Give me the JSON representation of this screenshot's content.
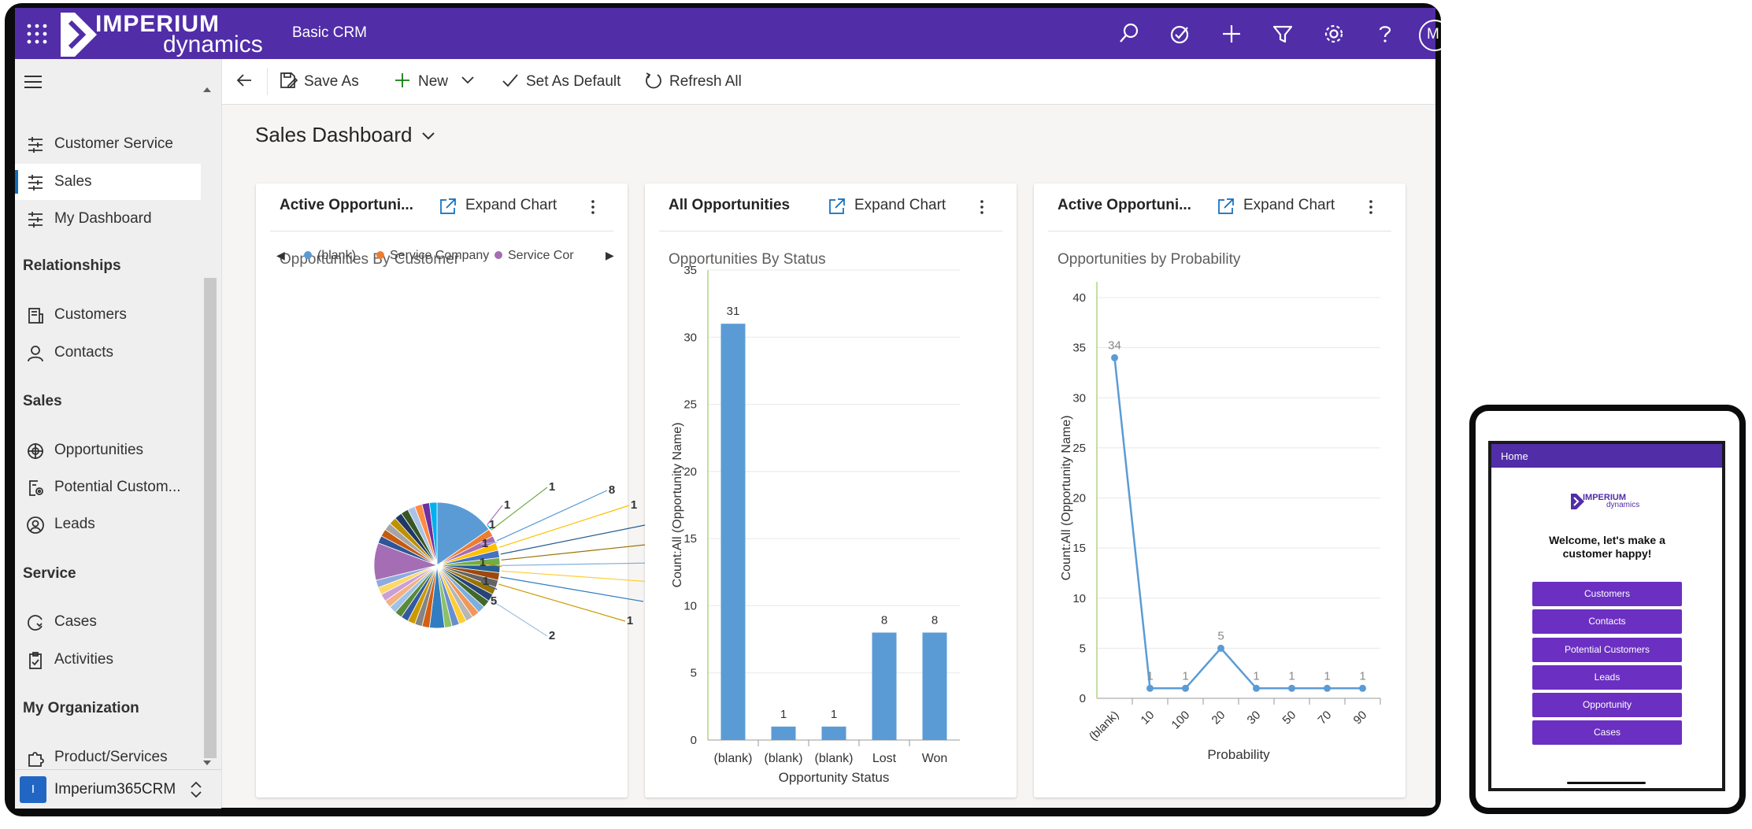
{
  "app": {
    "logo_top": "IMPERIUM",
    "logo_bottom": "dynamics",
    "app_name": "Basic CRM",
    "user_initial": "M",
    "icons": [
      "app-launcher-icon",
      "search-icon",
      "task-icon",
      "add-icon",
      "filter-icon",
      "settings-icon",
      "help-icon"
    ]
  },
  "sidebar": {
    "items_top": [
      {
        "label": "Customer Service",
        "icon": "dashboard-icon"
      },
      {
        "label": "Sales",
        "icon": "dashboard-icon",
        "selected": true
      },
      {
        "label": "My Dashboard",
        "icon": "dashboard-icon"
      }
    ],
    "groups": [
      {
        "title": "Relationships",
        "items": [
          {
            "label": "Customers",
            "icon": "account-icon"
          },
          {
            "label": "Contacts",
            "icon": "person-icon"
          }
        ]
      },
      {
        "title": "Sales",
        "items": [
          {
            "label": "Opportunities",
            "icon": "target-icon"
          },
          {
            "label": "Potential Custom...",
            "icon": "lead-gear-icon"
          },
          {
            "label": "Leads",
            "icon": "person-circle-icon"
          }
        ]
      },
      {
        "title": "Service",
        "items": [
          {
            "label": "Cases",
            "icon": "cases-icon"
          },
          {
            "label": "Activities",
            "icon": "clipboard-icon"
          }
        ]
      },
      {
        "title": "My Organization",
        "items": [
          {
            "label": "Product/Services",
            "icon": "puzzle-icon"
          }
        ]
      }
    ],
    "area": {
      "initial": "I",
      "label": "Imperium365CRM"
    }
  },
  "commandbar": {
    "save_as": "Save As",
    "new": "New",
    "set_default": "Set As Default",
    "refresh": "Refresh All"
  },
  "dashboard": {
    "title": "Sales Dashboard"
  },
  "cards": [
    {
      "title": "Active Opportuni...",
      "expand": "Expand Chart",
      "subtitle": "Opportunities By Customer"
    },
    {
      "title": "All Opportunities",
      "expand": "Expand Chart",
      "subtitle": "Opportunities By Status"
    },
    {
      "title": "Active Opportuni...",
      "expand": "Expand Chart",
      "subtitle": "Opportunities by Probability"
    }
  ],
  "chart_data": [
    {
      "type": "pie",
      "title": "Opportunities By Customer",
      "legend": [
        "(blank)",
        "Service Company",
        "Service Cor"
      ],
      "legend_placement": "top",
      "legend_colors": [
        "#5b9bd5",
        "#ed7d31",
        "#a56eb4"
      ],
      "slices": [
        8,
        1,
        1,
        1,
        1,
        1,
        1,
        1,
        1,
        1,
        1,
        1,
        1,
        1,
        1,
        1,
        1,
        1,
        2,
        1,
        1,
        1,
        1,
        1,
        1,
        1,
        1,
        1,
        1,
        5,
        1,
        1,
        1,
        1,
        1,
        1,
        1,
        1,
        1,
        1
      ],
      "printed_labels": [
        {
          "v": "8",
          "tx": 452,
          "ty": 394
        },
        {
          "v": "1",
          "tx": 480,
          "ty": 413
        },
        {
          "v": "1",
          "tx": 500,
          "ty": 438
        },
        {
          "v": "1",
          "tx": 510,
          "ty": 462
        },
        {
          "v": "1",
          "tx": 512,
          "ty": 486
        },
        {
          "v": "1",
          "tx": 508,
          "ty": 510
        },
        {
          "v": "1",
          "tx": 498,
          "ty": 535
        },
        {
          "v": "1",
          "tx": 475,
          "ty": 560
        },
        {
          "v": "2",
          "tx": 376,
          "ty": 579
        },
        {
          "v": "5",
          "tx": 302,
          "ty": 535
        },
        {
          "v": "1",
          "tx": 292,
          "ty": 510
        },
        {
          "v": "1",
          "tx": 288,
          "ty": 486
        },
        {
          "v": "1",
          "tx": 291,
          "ty": 462
        },
        {
          "v": "1",
          "tx": 300,
          "ty": 438
        },
        {
          "v": "1",
          "tx": 319,
          "ty": 413
        },
        {
          "v": "1",
          "tx": 376,
          "ty": 390
        }
      ]
    },
    {
      "type": "bar",
      "title": "Opportunities By Status",
      "categories": [
        "(blank)",
        "(blank)",
        "(blank)",
        "Lost",
        "Won"
      ],
      "values": [
        31,
        1,
        1,
        8,
        8
      ],
      "xlabel": "Opportunity Status",
      "ylabel": "Count:All (Opportunity Name)",
      "ylim": [
        0,
        35
      ],
      "yticks": [
        0,
        5,
        10,
        15,
        20,
        25,
        30,
        35
      ],
      "grid": true,
      "color": "#5b9bd5"
    },
    {
      "type": "line",
      "title": "Opportunities by Probability",
      "categories": [
        "(blank)",
        "10",
        "100",
        "20",
        "30",
        "50",
        "70",
        "90"
      ],
      "values": [
        34,
        1,
        1,
        5,
        1,
        1,
        1,
        1
      ],
      "xlabel": "Probability",
      "ylabel": "Count:All (Opportunity Name)",
      "ylim": [
        0,
        40
      ],
      "yticks": [
        0,
        5,
        10,
        15,
        20,
        25,
        30,
        35,
        40
      ],
      "grid": true,
      "color": "#5b9bd5"
    }
  ],
  "tablet": {
    "header": "Home",
    "logo_top": "IMPERIUM",
    "logo_bottom": "dynamics",
    "welcome": "Welcome, let's make a customer happy!",
    "buttons": [
      "Customers",
      "Contacts",
      "Potential Customers",
      "Leads",
      "Opportunity",
      "Cases"
    ]
  },
  "colors": {
    "brand": "#512da8",
    "accent": "#0f6cbd",
    "series": "#5b9bd5",
    "tablet_button": "#6b2fc2"
  }
}
